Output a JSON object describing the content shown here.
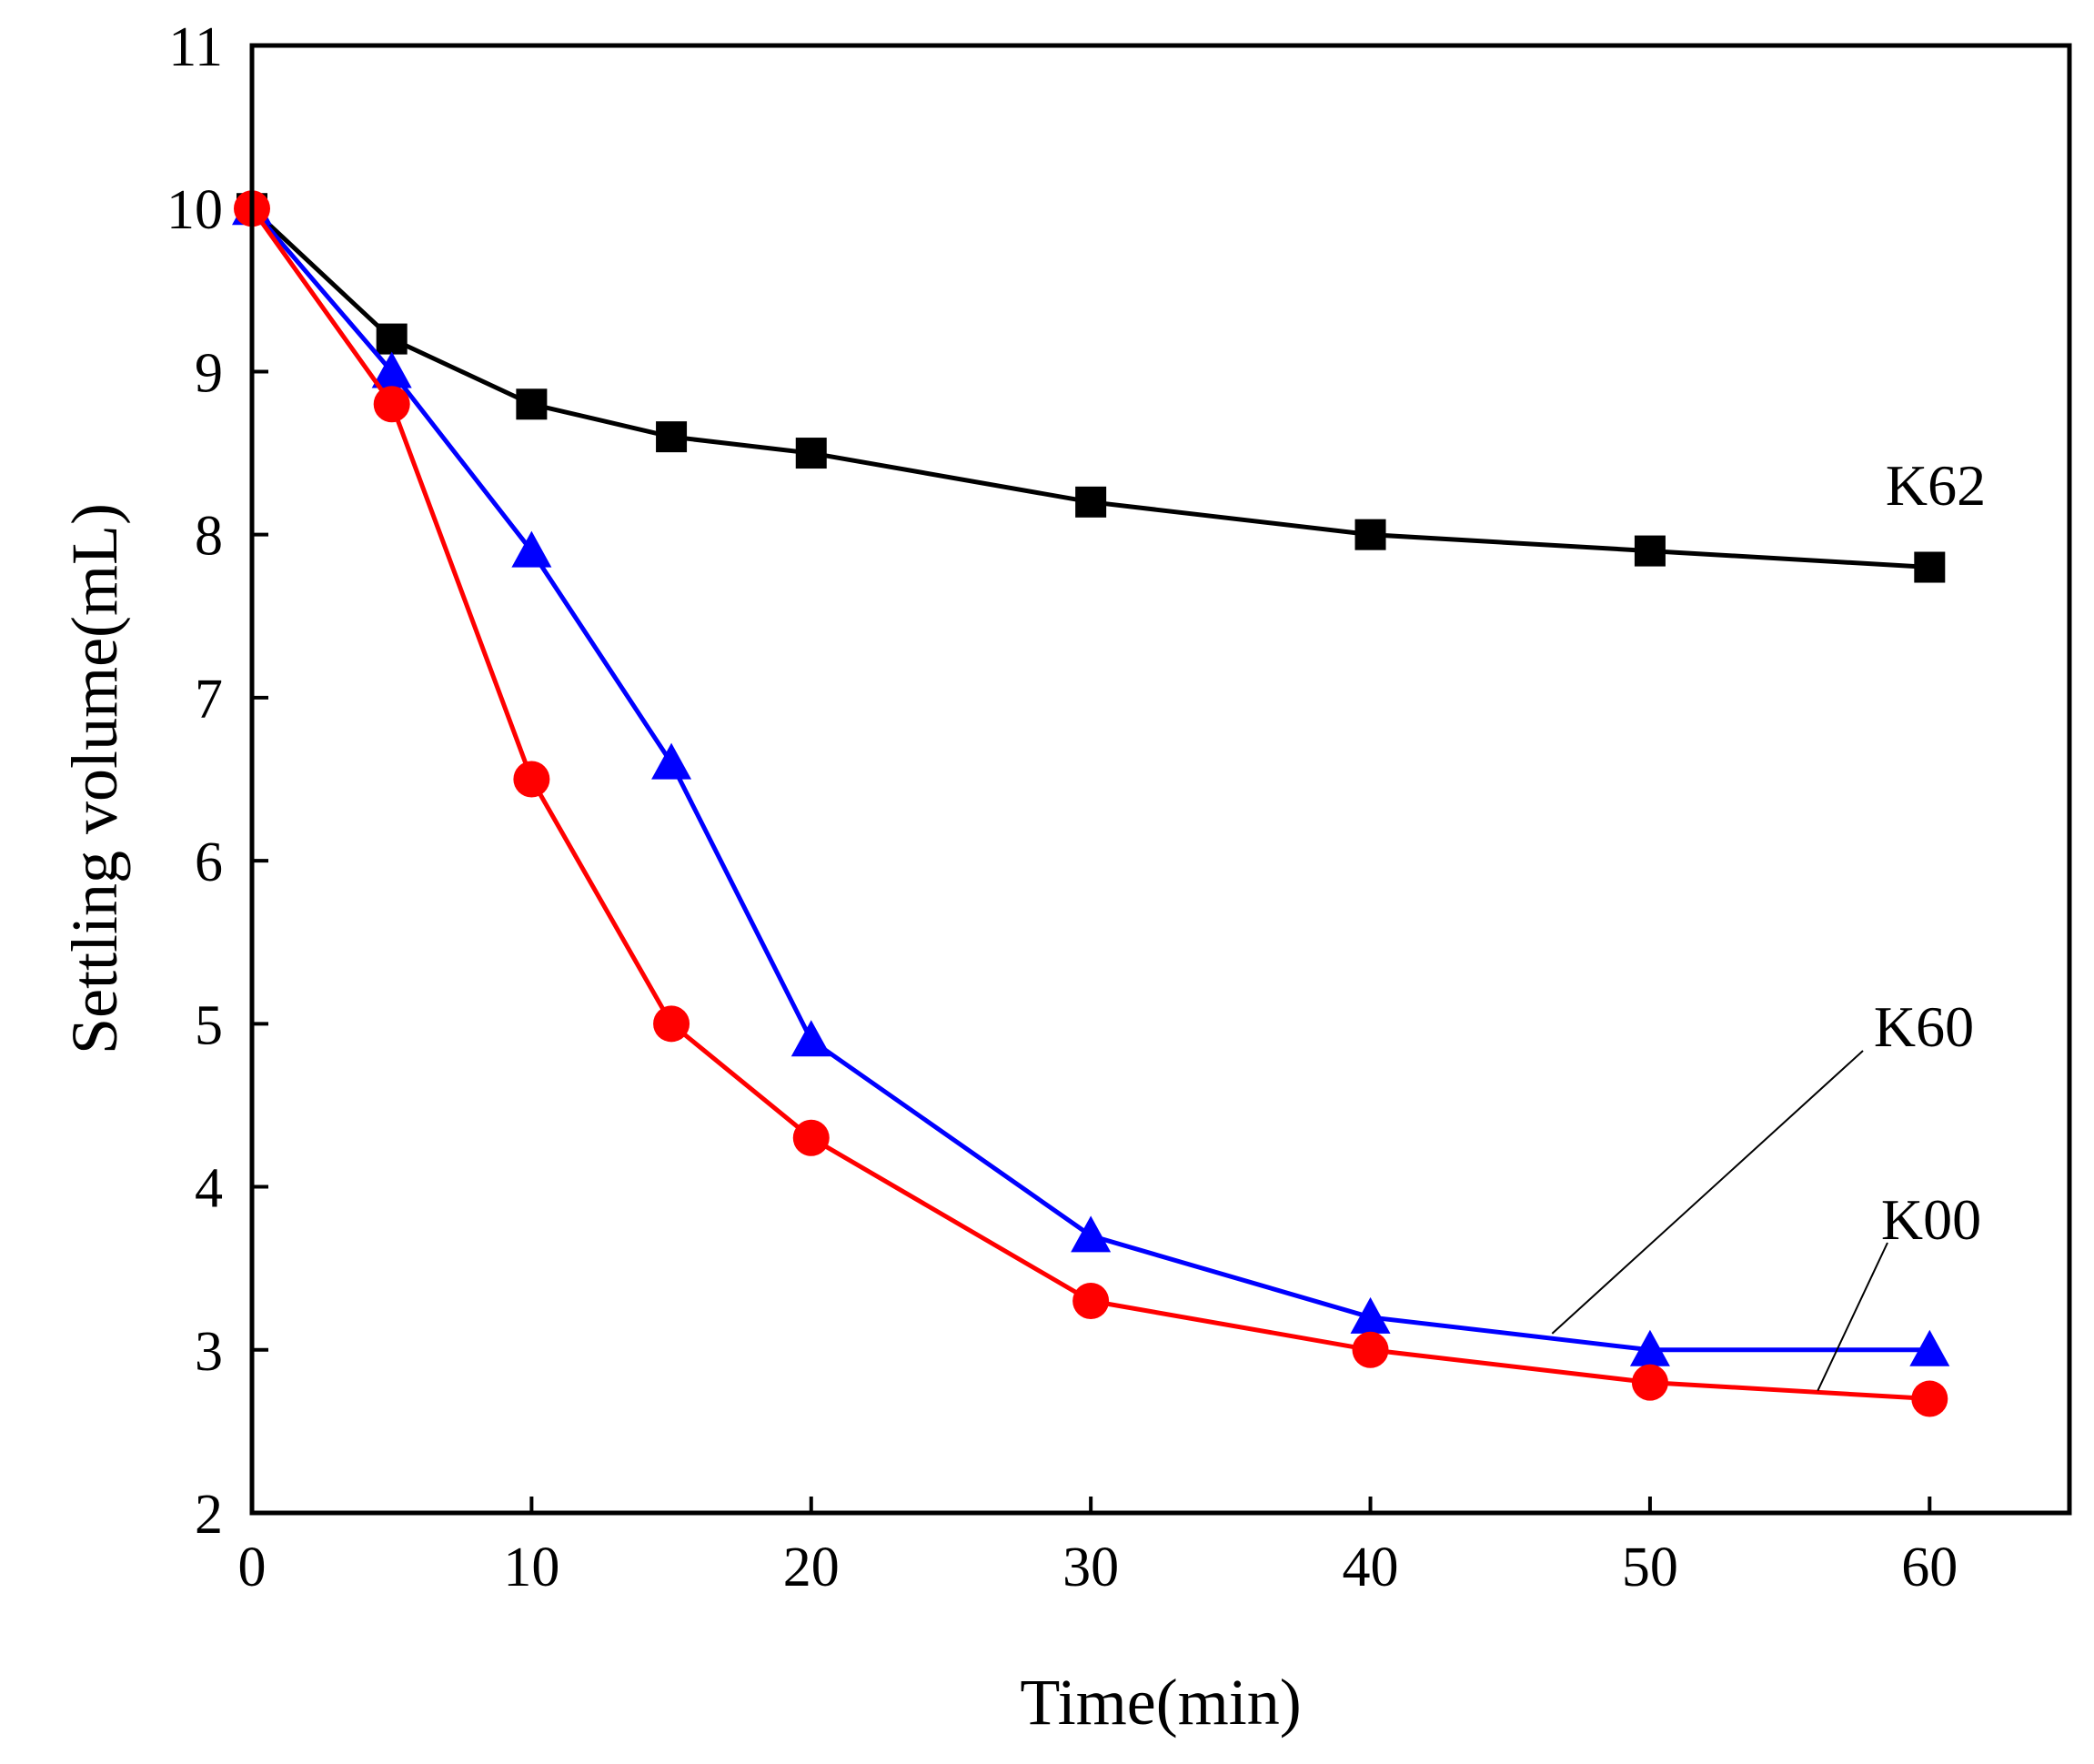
{
  "chart_data": {
    "type": "line",
    "title": "",
    "xlabel": "Time(min)",
    "ylabel": "Settling volume(mL)",
    "xlim": [
      0,
      65
    ],
    "ylim": [
      2,
      11
    ],
    "xticks": [
      0,
      10,
      20,
      30,
      40,
      50,
      60
    ],
    "yticks": [
      2,
      3,
      4,
      5,
      6,
      7,
      8,
      9,
      10,
      11
    ],
    "grid": false,
    "legend": "none",
    "x": [
      0,
      5,
      10,
      15,
      20,
      30,
      40,
      50,
      60
    ],
    "series": [
      {
        "name": "K62",
        "color": "#000000",
        "marker": "square",
        "values": [
          10,
          9.2,
          8.8,
          8.6,
          8.5,
          8.2,
          8.0,
          7.9,
          7.8
        ]
      },
      {
        "name": "K60",
        "color": "#0000ff",
        "marker": "triangle",
        "values": [
          10,
          9.0,
          7.9,
          6.6,
          4.9,
          3.7,
          3.2,
          3.0,
          3.0
        ]
      },
      {
        "name": "K00",
        "color": "#ff0000",
        "marker": "circle",
        "values": [
          10,
          8.8,
          6.5,
          5.0,
          4.3,
          3.3,
          3.0,
          2.8,
          2.7
        ]
      }
    ],
    "annotations": [
      {
        "series": "K62",
        "text": "K62",
        "leader": false,
        "point_x": 60,
        "point_y": 7.8
      },
      {
        "series": "K60",
        "text": "K60",
        "leader": true,
        "point_x": 46.5,
        "point_y": 3.1
      },
      {
        "series": "K00",
        "text": "K00",
        "leader": true,
        "point_x": 56,
        "point_y": 2.75
      }
    ]
  }
}
